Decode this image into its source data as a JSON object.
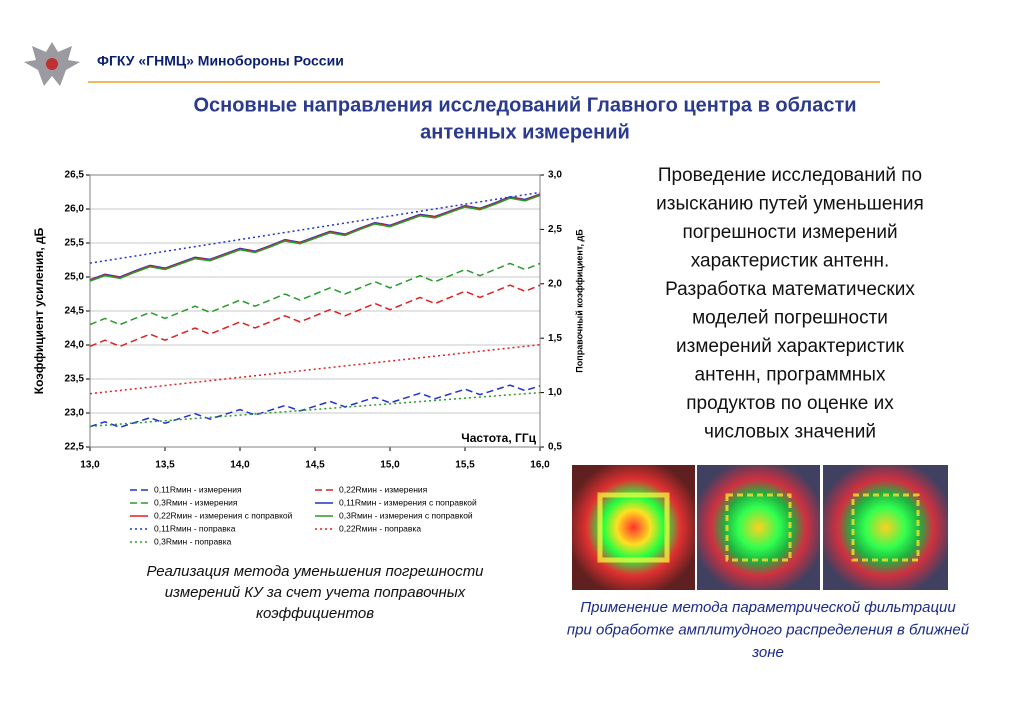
{
  "header": {
    "org": "ФГКУ «ГНМЦ» Минобороны России"
  },
  "title": [
    "Основные направления исследований Главного центра в области",
    "антенных измерений"
  ],
  "body_text": [
    "Проведение исследований по",
    "изысканию путей уменьшения",
    "погрешности измерений",
    "характеристик антенн.",
    "Разработка математических",
    "моделей погрешности",
    "измерений характеристик",
    "антенн, программных",
    "продуктов по оценке их",
    "числовых значений"
  ],
  "chart_caption": [
    "Реализация метода уменьшения погрешности",
    "измерений КУ за счет учета поправочных",
    "коэффициентов"
  ],
  "image_caption": [
    "Применение метода параметрической фильтрации",
    "при обработке амплитудного распределения в ближней",
    "зоне"
  ],
  "chart_data": {
    "type": "line",
    "xlabel": "Частота, ГГц",
    "ylabel": "Коэффициент усиления, дБ",
    "y2label": "Поправочный коэффициент, дБ",
    "x": [
      13.0,
      13.1,
      13.2,
      13.3,
      13.4,
      13.5,
      13.6,
      13.7,
      13.8,
      13.9,
      14.0,
      14.1,
      14.2,
      14.3,
      14.4,
      14.5,
      14.6,
      14.7,
      14.8,
      14.9,
      15.0,
      15.1,
      15.2,
      15.3,
      15.4,
      15.5,
      15.6,
      15.7,
      15.8,
      15.9,
      16.0
    ],
    "xlim": [
      13.0,
      16.0
    ],
    "xticks": [
      {
        "value": 13.0,
        "label": "13,0"
      },
      {
        "value": 13.5,
        "label": "13,5"
      },
      {
        "value": 14.0,
        "label": "14,0"
      },
      {
        "value": 14.5,
        "label": "14,5"
      },
      {
        "value": 15.0,
        "label": "15,0"
      },
      {
        "value": 15.5,
        "label": "15,5"
      },
      {
        "value": 16.0,
        "label": "16,0"
      }
    ],
    "ylim": [
      22.5,
      26.5
    ],
    "yticks": [
      {
        "value": 22.5,
        "label": "22,5"
      },
      {
        "value": 23.0,
        "label": "23,0"
      },
      {
        "value": 23.5,
        "label": "23,5"
      },
      {
        "value": 24.0,
        "label": "24,0"
      },
      {
        "value": 24.5,
        "label": "24,5"
      },
      {
        "value": 25.0,
        "label": "25,0"
      },
      {
        "value": 25.5,
        "label": "25,5"
      },
      {
        "value": 26.0,
        "label": "26,0"
      },
      {
        "value": 26.5,
        "label": "26,5"
      }
    ],
    "y2lim": [
      0.5,
      3.0
    ],
    "y2ticks": [
      {
        "value": 0.5,
        "label": "0,5"
      },
      {
        "value": 1.0,
        "label": "1,0"
      },
      {
        "value": 1.5,
        "label": "1,5"
      },
      {
        "value": 2.0,
        "label": "2,0"
      },
      {
        "value": 2.5,
        "label": "2,5"
      },
      {
        "value": 3.0,
        "label": "3,0"
      }
    ],
    "grid": true,
    "series": [
      {
        "name": "0,11Rмин - измерения",
        "color": "#2233cc",
        "style": "dashed",
        "values": [
          22.8,
          22.87,
          22.79,
          22.86,
          22.93,
          22.85,
          22.92,
          22.99,
          22.91,
          22.98,
          23.05,
          22.97,
          23.04,
          23.11,
          23.03,
          23.1,
          23.17,
          23.09,
          23.16,
          23.23,
          23.15,
          23.22,
          23.29,
          23.21,
          23.28,
          23.35,
          23.27,
          23.34,
          23.41,
          23.33,
          23.4
        ]
      },
      {
        "name": "0,22Rмин - измерения",
        "color": "#e02020",
        "style": "dashed",
        "values": [
          23.98,
          24.07,
          23.98,
          24.07,
          24.16,
          24.07,
          24.16,
          24.25,
          24.16,
          24.25,
          24.34,
          24.25,
          24.34,
          24.43,
          24.34,
          24.43,
          24.52,
          24.43,
          24.52,
          24.61,
          24.52,
          24.61,
          24.7,
          24.61,
          24.7,
          24.79,
          24.7,
          24.79,
          24.88,
          24.79,
          24.88
        ]
      },
      {
        "name": "0,3Rмин - измерения",
        "color": "#2a9a2a",
        "style": "dashed",
        "values": [
          24.3,
          24.39,
          24.3,
          24.39,
          24.48,
          24.39,
          24.48,
          24.57,
          24.48,
          24.57,
          24.66,
          24.57,
          24.66,
          24.75,
          24.66,
          24.75,
          24.84,
          24.75,
          24.84,
          24.93,
          24.84,
          24.93,
          25.02,
          24.93,
          25.02,
          25.11,
          25.02,
          25.11,
          25.2,
          25.11,
          25.2
        ]
      },
      {
        "name": "0,11Rмин - измерения с поправкой",
        "color": "#2233cc",
        "style": "solid",
        "values": [
          24.96,
          25.04,
          25.0,
          25.09,
          25.17,
          25.13,
          25.21,
          25.29,
          25.26,
          25.34,
          25.42,
          25.38,
          25.46,
          25.55,
          25.51,
          25.59,
          25.67,
          25.63,
          25.72,
          25.8,
          25.76,
          25.84,
          25.92,
          25.89,
          25.97,
          26.05,
          26.01,
          26.09,
          26.18,
          26.14,
          26.22
        ]
      },
      {
        "name": "0,22Rмин - измерения с поправкой",
        "color": "#e02020",
        "style": "solid",
        "values": [
          24.95,
          25.03,
          24.99,
          25.08,
          25.16,
          25.12,
          25.2,
          25.28,
          25.25,
          25.33,
          25.41,
          25.37,
          25.45,
          25.54,
          25.5,
          25.58,
          25.66,
          25.62,
          25.71,
          25.79,
          25.75,
          25.83,
          25.91,
          25.88,
          25.96,
          26.04,
          26.0,
          26.08,
          26.17,
          26.13,
          26.21
        ]
      },
      {
        "name": "0,3Rмин - измерения с поправкой",
        "color": "#2a9a2a",
        "style": "solid",
        "values": [
          24.94,
          25.02,
          24.98,
          25.07,
          25.15,
          25.11,
          25.19,
          25.27,
          25.24,
          25.32,
          25.4,
          25.36,
          25.44,
          25.53,
          25.49,
          25.57,
          25.65,
          25.61,
          25.7,
          25.78,
          25.74,
          25.82,
          25.9,
          25.87,
          25.95,
          26.03,
          25.99,
          26.07,
          26.16,
          26.12,
          26.2
        ]
      },
      {
        "name": "0,11Rмин - поправка",
        "color": "#2233cc",
        "style": "dotted",
        "axis": "y2",
        "x": [
          13.0,
          16.0
        ],
        "values": [
          2.19,
          2.84
        ]
      },
      {
        "name": "0,22Rмин -  поправка",
        "color": "#e02020",
        "style": "dotted",
        "axis": "y2",
        "x": [
          13.0,
          16.0
        ],
        "values": [
          0.99,
          1.44
        ]
      },
      {
        "name": "0,3Rмин - поправка",
        "color": "#2a9a2a",
        "style": "dotted",
        "axis": "y2",
        "x": [
          13.0,
          16.0
        ],
        "values": [
          0.69,
          1.0
        ]
      }
    ]
  }
}
